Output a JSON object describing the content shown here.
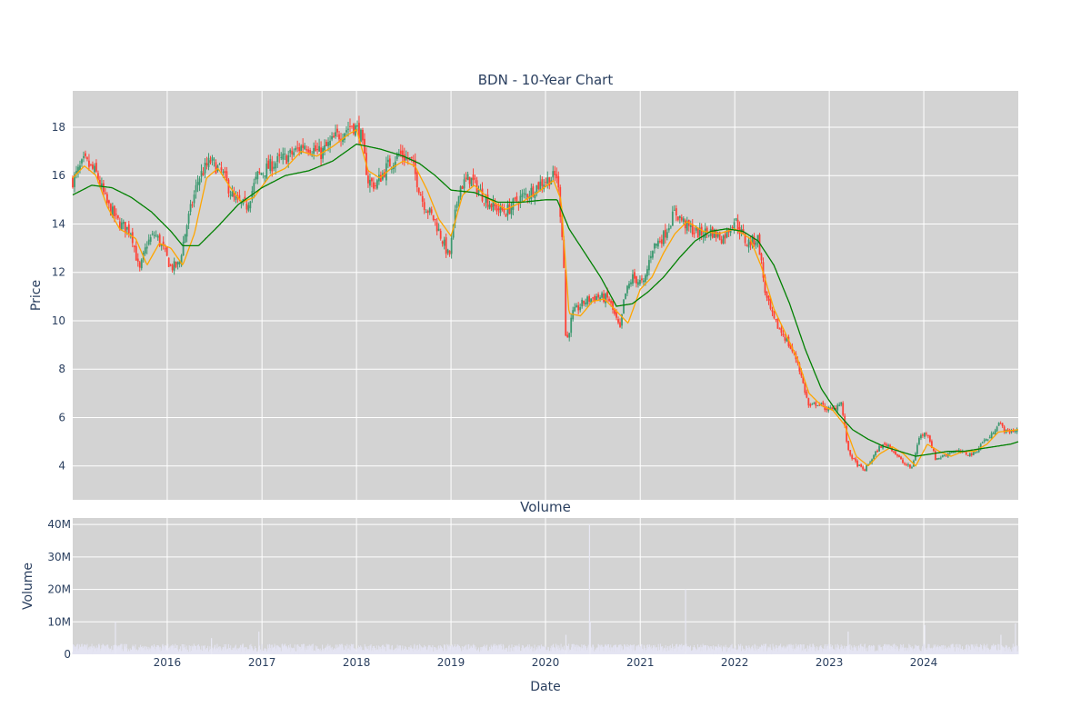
{
  "chart_data": [
    {
      "type": "candlestick",
      "title": "BDN - 10-Year Chart",
      "xlabel": "",
      "ylabel": "Price",
      "ylim": [
        2.6,
        19.5
      ],
      "yticks": [
        4,
        6,
        8,
        10,
        12,
        14,
        16,
        18
      ],
      "xticks": [
        "2016",
        "2017",
        "2018",
        "2019",
        "2020",
        "2021",
        "2022",
        "2023",
        "2024"
      ],
      "x_range": [
        "2015-01-01",
        "2024-12-31"
      ],
      "grid": true,
      "colors": {
        "increasing": "#3d9970",
        "decreasing": "#ff4136",
        "ma_short": "#ffa500",
        "ma_long": "#008000",
        "plot_bg": "#d3d3d3"
      },
      "close_series": {
        "dates": [
          "2015-01-01",
          "2015-02-15",
          "2015-04-01",
          "2015-05-15",
          "2015-07-01",
          "2015-08-15",
          "2015-09-15",
          "2015-10-15",
          "2015-11-15",
          "2015-12-15",
          "2016-01-15",
          "2016-02-15",
          "2016-03-15",
          "2016-05-01",
          "2016-06-15",
          "2016-08-01",
          "2016-09-15",
          "2016-11-01",
          "2016-12-15",
          "2017-02-15",
          "2017-04-15",
          "2017-06-15",
          "2017-08-15",
          "2017-10-15",
          "2017-12-15",
          "2018-01-15",
          "2018-02-15",
          "2018-03-15",
          "2018-05-01",
          "2018-06-15",
          "2018-08-01",
          "2018-09-15",
          "2018-11-01",
          "2018-12-25",
          "2019-02-01",
          "2019-03-15",
          "2019-05-01",
          "2019-06-15",
          "2019-08-01",
          "2019-09-15",
          "2019-11-01",
          "2019-12-15",
          "2020-02-15",
          "2020-03-10",
          "2020-03-20",
          "2020-04-15",
          "2020-06-01",
          "2020-07-15",
          "2020-09-01",
          "2020-10-15",
          "2020-11-01",
          "2020-12-01",
          "2021-01-15",
          "2021-02-15",
          "2021-04-01",
          "2021-05-15",
          "2021-07-01",
          "2021-08-15",
          "2021-10-01",
          "2021-11-15",
          "2022-01-01",
          "2022-02-15",
          "2022-04-01",
          "2022-05-01",
          "2022-06-01",
          "2022-07-15",
          "2022-09-01",
          "2022-10-15",
          "2022-11-15",
          "2022-12-15",
          "2023-01-15",
          "2023-02-15",
          "2023-03-15",
          "2023-04-15",
          "2023-05-15",
          "2023-06-15",
          "2023-07-15",
          "2023-08-15",
          "2023-09-15",
          "2023-10-15",
          "2023-11-15",
          "2023-12-15",
          "2024-01-15",
          "2024-02-15",
          "2024-03-15",
          "2024-04-15",
          "2024-05-15",
          "2024-06-15",
          "2024-07-15",
          "2024-08-15",
          "2024-09-15",
          "2024-10-15",
          "2024-11-15",
          "2024-12-31"
        ],
        "close": [
          15.8,
          16.6,
          16.1,
          14.8,
          14.0,
          13.7,
          12.0,
          13.2,
          13.6,
          13.0,
          12.2,
          12.3,
          13.9,
          15.9,
          16.6,
          16.1,
          15.0,
          14.7,
          16.0,
          16.5,
          16.8,
          17.3,
          16.9,
          17.6,
          18.1,
          17.8,
          15.8,
          15.6,
          16.4,
          16.9,
          16.6,
          14.9,
          14.1,
          12.6,
          15.5,
          15.9,
          15.2,
          14.7,
          14.5,
          15.0,
          15.3,
          15.7,
          16.0,
          13.0,
          9.0,
          10.3,
          10.8,
          11.0,
          10.9,
          9.6,
          11.0,
          11.8,
          11.5,
          13.0,
          13.5,
          14.5,
          13.9,
          13.6,
          13.7,
          13.4,
          14.2,
          13.2,
          13.4,
          11.0,
          10.0,
          9.3,
          8.3,
          6.4,
          6.6,
          6.4,
          6.3,
          6.7,
          4.6,
          4.1,
          3.8,
          4.3,
          4.8,
          4.9,
          4.5,
          4.1,
          3.9,
          5.2,
          5.4,
          4.3,
          4.4,
          4.6,
          4.6,
          4.5,
          4.5,
          5.0,
          5.2,
          5.8,
          5.4,
          5.5
        ]
      },
      "ma_short_series": {
        "dates": [
          "2015-01-01",
          "2015-02-15",
          "2015-04-01",
          "2015-05-15",
          "2015-07-01",
          "2015-09-01",
          "2015-10-15",
          "2015-12-01",
          "2016-01-15",
          "2016-03-01",
          "2016-04-15",
          "2016-06-01",
          "2016-07-15",
          "2016-09-01",
          "2016-10-15",
          "2016-12-01",
          "2017-02-01",
          "2017-04-01",
          "2017-06-01",
          "2017-08-01",
          "2017-10-01",
          "2017-12-01",
          "2018-01-01",
          "2018-02-15",
          "2018-04-01",
          "2018-05-15",
          "2018-07-01",
          "2018-08-15",
          "2018-10-01",
          "2018-11-15",
          "2019-01-01",
          "2019-02-15",
          "2019-04-01",
          "2019-06-01",
          "2019-08-01",
          "2019-10-01",
          "2019-12-01",
          "2020-02-01",
          "2020-03-01",
          "2020-04-01",
          "2020-05-15",
          "2020-07-01",
          "2020-08-15",
          "2020-10-01",
          "2020-11-15",
          "2021-01-01",
          "2021-02-15",
          "2021-04-01",
          "2021-05-15",
          "2021-07-01",
          "2021-09-01",
          "2021-11-01",
          "2022-01-01",
          "2022-03-01",
          "2022-04-15",
          "2022-06-01",
          "2022-07-15",
          "2022-09-01",
          "2022-10-15",
          "2022-12-01",
          "2023-01-15",
          "2023-03-01",
          "2023-04-15",
          "2023-06-01",
          "2023-07-15",
          "2023-09-01",
          "2023-10-15",
          "2023-12-01",
          "2024-01-15",
          "2024-03-01",
          "2024-04-15",
          "2024-06-01",
          "2024-07-15",
          "2024-09-01",
          "2024-10-15",
          "2024-12-31"
        ],
        "values": [
          15.9,
          16.4,
          16.0,
          14.7,
          13.8,
          13.4,
          12.3,
          13.2,
          13.0,
          12.3,
          13.6,
          15.9,
          16.3,
          15.5,
          14.9,
          15.1,
          16.0,
          16.3,
          17.0,
          16.8,
          17.2,
          17.7,
          17.9,
          16.2,
          15.9,
          16.3,
          16.6,
          16.4,
          15.4,
          14.2,
          13.5,
          15.2,
          15.6,
          15.0,
          14.6,
          14.9,
          15.3,
          15.8,
          15.0,
          10.3,
          10.2,
          10.8,
          10.9,
          10.4,
          9.9,
          11.3,
          11.8,
          12.8,
          13.6,
          14.1,
          13.7,
          13.6,
          13.8,
          13.4,
          12.2,
          10.5,
          9.5,
          8.4,
          7.0,
          6.5,
          6.3,
          5.7,
          4.4,
          4.0,
          4.5,
          4.8,
          4.5,
          4.0,
          4.9,
          4.6,
          4.4,
          4.6,
          4.6,
          4.9,
          5.4,
          5.5
        ]
      },
      "ma_long_series": {
        "dates": [
          "2015-01-01",
          "2015-03-15",
          "2015-06-01",
          "2015-08-15",
          "2015-11-01",
          "2016-01-15",
          "2016-03-01",
          "2016-05-01",
          "2016-07-15",
          "2016-10-01",
          "2017-01-01",
          "2017-04-01",
          "2017-07-01",
          "2017-10-01",
          "2018-01-01",
          "2018-04-01",
          "2018-07-01",
          "2018-09-01",
          "2018-11-01",
          "2019-01-01",
          "2019-04-01",
          "2019-07-01",
          "2019-10-01",
          "2020-01-01",
          "2020-02-15",
          "2020-04-01",
          "2020-06-01",
          "2020-08-01",
          "2020-10-01",
          "2020-12-01",
          "2021-02-01",
          "2021-04-01",
          "2021-06-01",
          "2021-08-01",
          "2021-10-01",
          "2021-12-01",
          "2022-02-01",
          "2022-04-01",
          "2022-06-01",
          "2022-08-01",
          "2022-10-01",
          "2022-12-01",
          "2023-02-01",
          "2023-04-01",
          "2023-06-01",
          "2023-08-01",
          "2023-10-01",
          "2023-12-01",
          "2024-02-01",
          "2024-04-01",
          "2024-06-01",
          "2024-08-01",
          "2024-10-01",
          "2024-12-01",
          "2024-12-31"
        ],
        "values": [
          15.2,
          15.6,
          15.5,
          15.1,
          14.5,
          13.7,
          13.1,
          13.1,
          13.9,
          14.8,
          15.5,
          16.0,
          16.2,
          16.6,
          17.3,
          17.1,
          16.8,
          16.5,
          16.0,
          15.4,
          15.3,
          14.9,
          14.9,
          15.0,
          15.0,
          13.8,
          12.8,
          11.8,
          10.6,
          10.7,
          11.2,
          11.8,
          12.6,
          13.3,
          13.7,
          13.8,
          13.7,
          13.3,
          12.3,
          10.7,
          8.8,
          7.2,
          6.2,
          5.5,
          5.1,
          4.8,
          4.6,
          4.4,
          4.5,
          4.6,
          4.6,
          4.7,
          4.8,
          4.9,
          5.0
        ]
      }
    },
    {
      "type": "bar",
      "title": "Volume",
      "xlabel": "Date",
      "ylabel": "Volume",
      "ylim": [
        0,
        42000000
      ],
      "yticks": [
        0,
        10000000,
        20000000,
        30000000,
        40000000
      ],
      "ytick_labels": [
        "0",
        "10M",
        "20M",
        "30M",
        "40M"
      ],
      "xticks": [
        "2016",
        "2017",
        "2018",
        "2019",
        "2020",
        "2021",
        "2022",
        "2023",
        "2024"
      ],
      "baseline_volume": 1800000,
      "spikes": [
        {
          "date": "2015-06-15",
          "volume": 10000000
        },
        {
          "date": "2016-06-20",
          "volume": 5000000
        },
        {
          "date": "2016-12-20",
          "volume": 7000000
        },
        {
          "date": "2020-03-20",
          "volume": 6000000
        },
        {
          "date": "2020-06-19",
          "volume": 40000000
        },
        {
          "date": "2020-06-22",
          "volume": 10000000
        },
        {
          "date": "2021-06-25",
          "volume": 20000000
        },
        {
          "date": "2023-03-15",
          "volume": 7000000
        },
        {
          "date": "2024-01-05",
          "volume": 9000000
        },
        {
          "date": "2024-10-25",
          "volume": 6000000
        },
        {
          "date": "2024-12-20",
          "volume": 9500000
        }
      ],
      "color": "#6e6eb5"
    }
  ]
}
